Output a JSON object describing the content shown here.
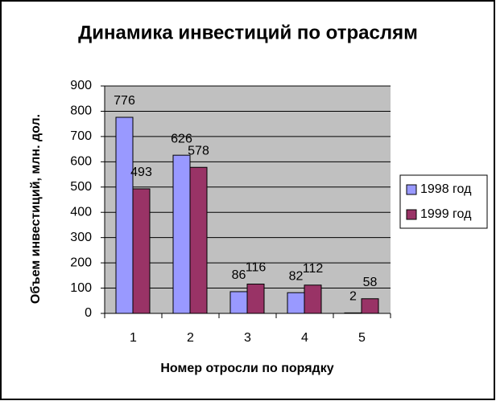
{
  "chart_data": {
    "type": "bar",
    "title": "Динамика инвестиций по отраслям",
    "x_label": "Номер отросли по порядку",
    "y_label": "Объем инвестиций, млн. дол.",
    "categories": [
      "1",
      "2",
      "3",
      "4",
      "5"
    ],
    "series": [
      {
        "name": "1998 год",
        "color": "#9999ff",
        "values": [
          776,
          626,
          86,
          82,
          2
        ]
      },
      {
        "name": "1999 год",
        "color": "#993366",
        "values": [
          493,
          578,
          116,
          112,
          58
        ]
      }
    ],
    "ylim": [
      0,
      900
    ],
    "yticks": [
      0,
      100,
      200,
      300,
      400,
      500,
      600,
      700,
      800,
      900
    ],
    "grid": true,
    "legend": "right",
    "plot_background": "#c0c0c0"
  }
}
